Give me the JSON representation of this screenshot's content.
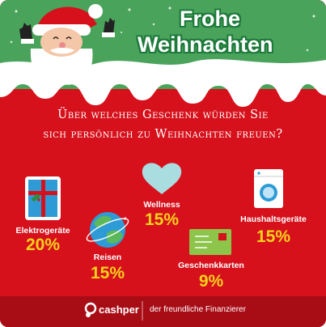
{
  "header": {
    "greeting_line1": "Frohe",
    "greeting_line2": "Weihnachten"
  },
  "question": {
    "line1": "Über welches Geschenk würden Sie",
    "line2": "sich persönlich zu Weihnachten freuen?"
  },
  "chart_data": {
    "type": "table",
    "categories": [
      "Elektrogeräte",
      "Reisen",
      "Wellness",
      "Geschenkkarten",
      "Haushaltsgeräte"
    ],
    "values": [
      "20%",
      "15%",
      "15%",
      "9%",
      "15%"
    ]
  },
  "icons": [
    "santa-icon",
    "tablet-icon",
    "globe-icon",
    "heart-icon",
    "gift-card-icon",
    "washing-machine-icon",
    "cashper-logo-icon"
  ],
  "footer": {
    "brand": "cashper",
    "tagline": "der freundliche Finanzierer"
  },
  "colors": {
    "background_red": "#d6111c",
    "header_green": "#4aa35b",
    "value_yellow": "#f7d11c",
    "footer_red": "#a80d16"
  }
}
